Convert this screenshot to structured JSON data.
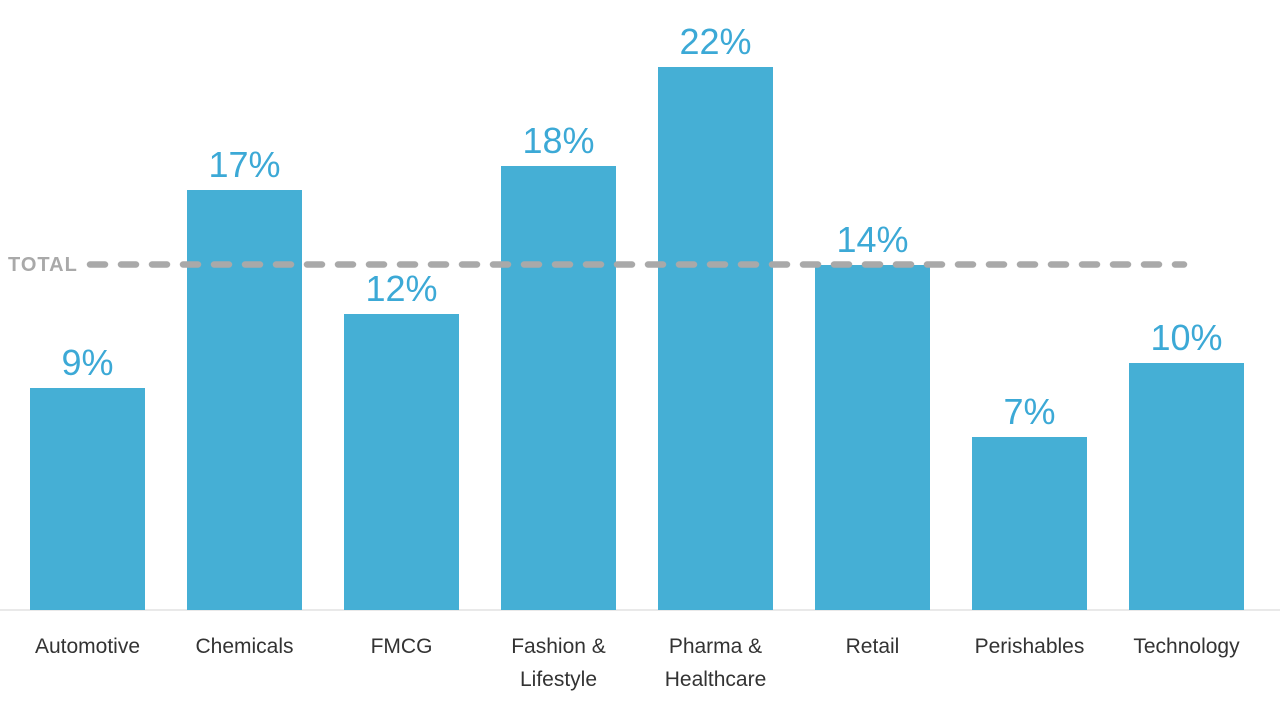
{
  "chart_data": {
    "type": "bar",
    "title": "",
    "xlabel": "",
    "ylabel": "",
    "unit": "%",
    "categories": [
      "Automotive",
      "Chemicals",
      "FMCG",
      "Fashion & Lifestyle",
      "Pharma & Healthcare",
      "Retail",
      "Perishables",
      "Technology"
    ],
    "category_display": [
      "Automotive",
      "Chemicals",
      "FMCG",
      "Fashion &\nLifestyle",
      "Pharma &\nHealthcare",
      "Retail",
      "Perishables",
      "Technology"
    ],
    "values": [
      9,
      17,
      12,
      18,
      22,
      14,
      7,
      10
    ],
    "value_labels": [
      "9%",
      "17%",
      "12%",
      "18%",
      "22%",
      "14%",
      "7%",
      "10%"
    ],
    "ylim": [
      0,
      24
    ],
    "grid": false,
    "legend": false,
    "reference_line": {
      "label": "TOTAL",
      "value": 14
    },
    "colors": {
      "bar": "#45AFD5",
      "value_label": "#3CA9D6",
      "reference_line": "#A9A9A9",
      "reference_label": "#A9A9A9",
      "category_label": "#333333",
      "axis_line": "#E9E9E9",
      "background": "#FFFFFF"
    }
  }
}
